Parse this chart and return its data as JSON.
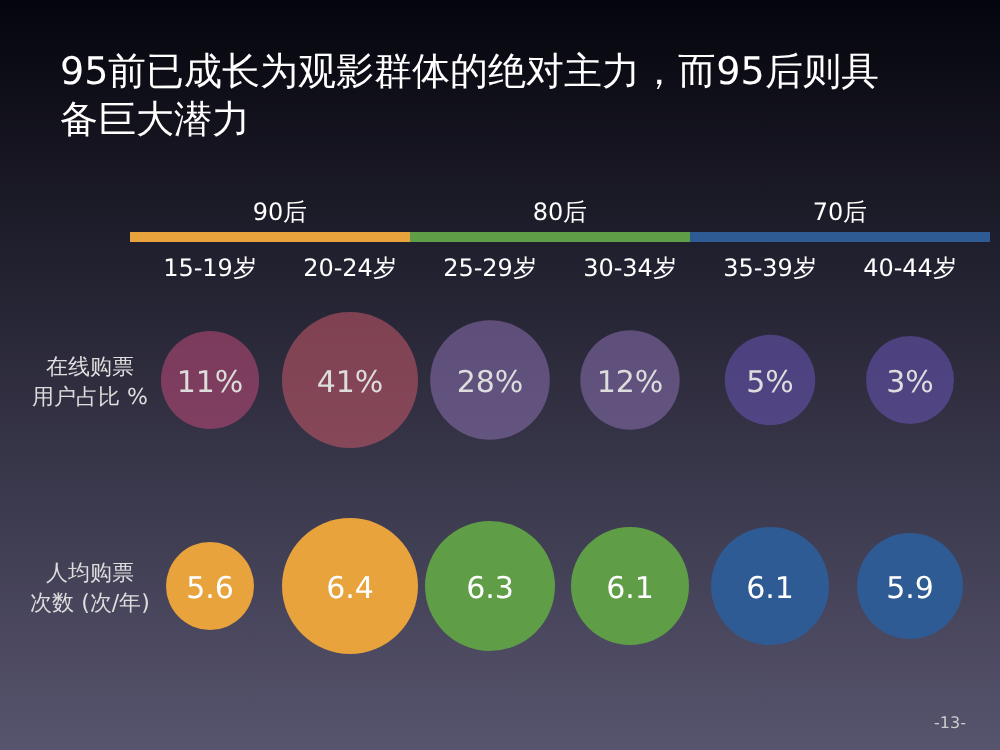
{
  "chart_data": {
    "type": "other",
    "title": "95前已成长为观影群体的绝对主力，而95后则具备巨大潜力",
    "categories": [
      "15-19岁",
      "20-24岁",
      "25-29岁",
      "30-34岁",
      "35-39岁",
      "40-44岁"
    ],
    "series": [
      {
        "name": "在线购票用户占比 %",
        "colors": [
          "#c04a78",
          "#c85a6a",
          "#8a6fb0",
          "#8a6fb0",
          "#6a55b8",
          "#6a55b8"
        ],
        "values": [
          11,
          41,
          28,
          12,
          5,
          3
        ],
        "value_labels": [
          "11%",
          "41%",
          "28%",
          "12%",
          "5%",
          "3%"
        ]
      },
      {
        "name": "人均购票次数 (次/年)",
        "colors": [
          "#e8a33d",
          "#e8a33d",
          "#5f9e47",
          "#5f9e47",
          "#2f5b94",
          "#2f5b94"
        ],
        "values": [
          5.6,
          6.4,
          6.3,
          6.1,
          6.1,
          5.9
        ],
        "value_labels": [
          "5.6",
          "6.4",
          "6.3",
          "6.1",
          "6.1",
          "5.9"
        ]
      }
    ],
    "annotations": [
      "90后",
      "80后",
      "70后",
      "-13-"
    ]
  }
}
